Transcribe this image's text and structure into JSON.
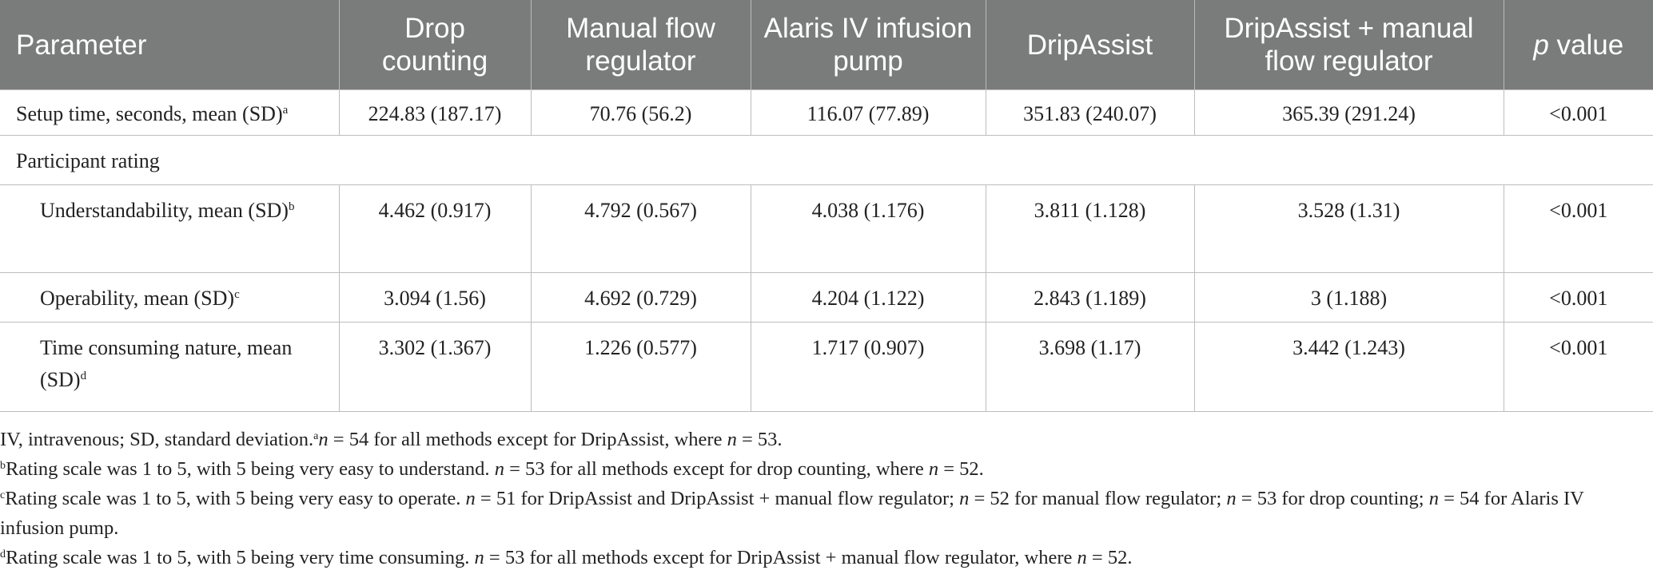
{
  "table": {
    "headers": {
      "parameter": "Parameter",
      "drop_counting": "Drop counting",
      "manual": "Manual flow regulator",
      "alaris": "Alaris IV infusion pump",
      "dripassist": "DripAssist",
      "dripassist_manual": "DripAssist + manual flow regulator",
      "p_italic": "p",
      "p_rest": " value"
    },
    "rows": {
      "setup": {
        "label": "Setup time, seconds, mean (SD)",
        "sup": "a",
        "values": [
          "224.83 (187.17)",
          "70.76 (56.2)",
          "116.07 (77.89)",
          "351.83 (240.07)",
          "365.39 (291.24)",
          "<0.001"
        ]
      },
      "participant": {
        "label": "Participant rating"
      },
      "understandability": {
        "label": "Understandability, mean (SD)",
        "sup": "b",
        "values": [
          "4.462 (0.917)",
          "4.792 (0.567)",
          "4.038 (1.176)",
          "3.811 (1.128)",
          "3.528 (1.31)",
          "<0.001"
        ]
      },
      "operability": {
        "label": "Operability, mean (SD)",
        "sup": "c",
        "values": [
          "3.094 (1.56)",
          "4.692 (0.729)",
          "4.204 (1.122)",
          "2.843 (1.189)",
          "3 (1.188)",
          "<0.001"
        ]
      },
      "time_consuming": {
        "label": "Time consuming nature, mean (SD)",
        "sup": "d",
        "values": [
          "3.302 (1.367)",
          "1.226 (0.577)",
          "1.717 (0.907)",
          "3.698 (1.17)",
          "3.442 (1.243)",
          "<0.001"
        ]
      }
    }
  },
  "footnotes": {
    "abbrev": "IV, intravenous; SD, standard deviation.",
    "a": {
      "mark": "a",
      "n1": "n",
      "t1": " = 54 for all methods except for DripAssist, where ",
      "n2": "n",
      "t2": " = 53."
    },
    "b": {
      "mark": "b",
      "t0": "Rating scale was 1 to 5, with 5 being very easy to understand. ",
      "n1": "n",
      "t1": " = 53 for all methods except for drop counting, where ",
      "n2": "n",
      "t2": " = 52."
    },
    "c": {
      "mark": "c",
      "t0": "Rating scale was 1 to 5, with 5 being very easy to operate. ",
      "n1": "n",
      "t1": " = 51 for DripAssist and DripAssist + manual flow regulator; ",
      "n2": "n",
      "t2": " = 52 for manual flow regulator; ",
      "n3": "n",
      "t3": " = 53 for drop counting; ",
      "n4": "n",
      "t4": " = 54 for Alaris IV infusion pump."
    },
    "d": {
      "mark": "d",
      "t0": "Rating scale was 1 to 5, with 5 being very time consuming. ",
      "n1": "n",
      "t1": " = 53 for all methods except for DripAssist + manual flow regulator, where ",
      "n2": "n",
      "t2": " = 52."
    }
  }
}
